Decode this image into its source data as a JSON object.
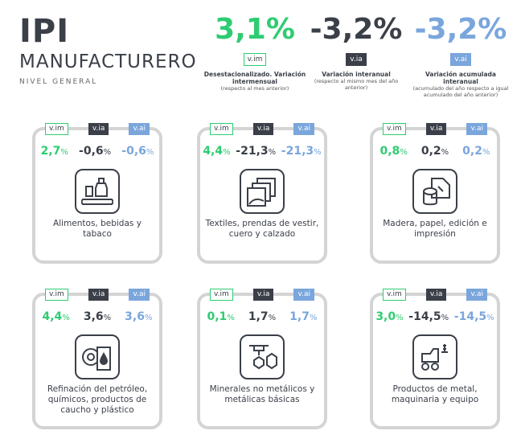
{
  "header": {
    "title": "IPI",
    "subtitle": "MANUFACTURERO",
    "level": "NIVEL GENERAL"
  },
  "summary": [
    {
      "value": "3,1%",
      "tag": "v.im",
      "desc": "Desestacionalizado. Variación intermensual",
      "sub": "(respecto al mes anterior)"
    },
    {
      "value": "-3,2%",
      "tag": "v.ia",
      "desc": "Variación interanual",
      "sub": "(respecto al mismo mes del año anterior)"
    },
    {
      "value": "-3,2%",
      "tag": "v.ai",
      "desc": "Variación acumulada interanual",
      "sub": "(acumulado del año respecto a igual acumulado del año anterior)"
    }
  ],
  "tags": {
    "vim": "v.im",
    "via": "v.ia",
    "vai": "v.ai"
  },
  "cards": [
    {
      "vim": "2,7",
      "via": "-0,6",
      "vai": "-0,6",
      "label": "Alimentos, bebidas y tabaco",
      "icon": "food-icon"
    },
    {
      "vim": "4,4",
      "via": "-21,3",
      "vai": "-21,3",
      "label": "Textiles, prendas de vestir, cuero y calzado",
      "icon": "textile-icon"
    },
    {
      "vim": "0,8",
      "via": "0,2",
      "vai": "0,2",
      "label": "Madera, papel, edición e impresión",
      "icon": "wood-paper-icon"
    },
    {
      "vim": "4,4",
      "via": "3,6",
      "vai": "3,6",
      "label": "Refinación del petróleo, químicos, productos de caucho y plástico",
      "icon": "oil-chemical-icon"
    },
    {
      "vim": "0,1",
      "via": "1,7",
      "vai": "1,7",
      "label": "Minerales no metálicos y metálicas básicas",
      "icon": "minerals-icon"
    },
    {
      "vim": "3,0",
      "via": "-14,5",
      "vai": "-14,5",
      "label": "Productos de metal, maquinaria y equipo",
      "icon": "machinery-icon"
    }
  ],
  "pct": "%",
  "colors": {
    "green": "#2ecc71",
    "dark": "#3a3f48",
    "blue": "#7aa6dc",
    "border": "#d4d4d4"
  }
}
